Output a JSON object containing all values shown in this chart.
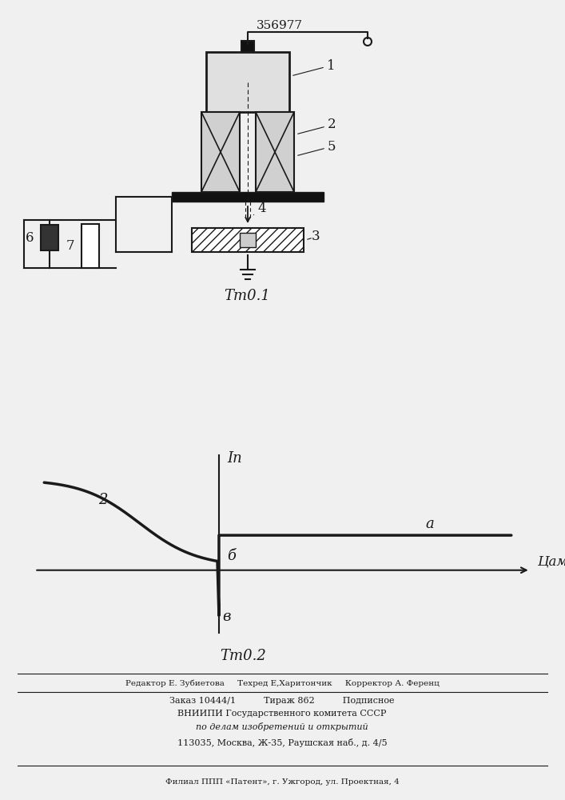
{
  "title_number": "356977",
  "fig1_label": "Τт0.1",
  "fig2_label": "Τт0.2",
  "background_color": "#f0f0f0",
  "line_color": "#1a1a1a",
  "text_color": "#1a1a1a",
  "ylabel_fig2": "Iп",
  "xlabel_fig2": "Цам",
  "label_a": "a",
  "label_2curve": "2",
  "label_b": "б",
  "label_v": "в",
  "footer_line1": "Редактор Е. Зубиетова     Техред Е,Харитончик     Корректор А. Ференц",
  "footer_line2": "Заказ 10444/1          Тираж 862          Подписное",
  "footer_line3": "ВНИИПИ Государственного комитета СССР",
  "footer_line4": "по делам изобретений и открытий",
  "footer_line5": "113035, Москва, Ж-35, Раушская наб., д. 4/5",
  "footer_line6": "Филиал ППП «Патент», г. Ужгород, ул. Проектная, 4"
}
